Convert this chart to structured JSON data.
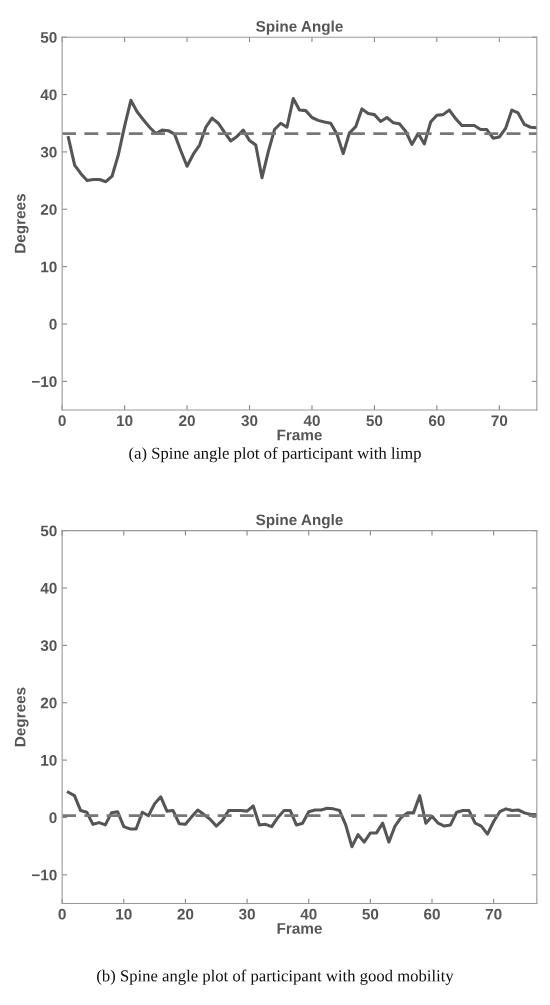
{
  "chart_data": [
    {
      "type": "line",
      "title": "Spine Angle",
      "xlabel": "Frame",
      "ylabel": "Degrees",
      "annotations": [
        "(a) Spine angle plot of participant with limp"
      ],
      "x": [
        1,
        2,
        3,
        4,
        5,
        6,
        7,
        8,
        9,
        10,
        11,
        12,
        13,
        14,
        15,
        16,
        17,
        18,
        19,
        20,
        21,
        22,
        23,
        24,
        25,
        26,
        27,
        28,
        29,
        30,
        31,
        32,
        33,
        34,
        35,
        36,
        37,
        38,
        39,
        40,
        41,
        42,
        43,
        44,
        45,
        46,
        47,
        48,
        49,
        50,
        51,
        52,
        53,
        54,
        55,
        56,
        57,
        58,
        59,
        60,
        61,
        62,
        63,
        64,
        65,
        66,
        67,
        68,
        69,
        70,
        71,
        72,
        73,
        74,
        75,
        76
      ],
      "series": [
        {
          "color": "#555555",
          "values": [
            32.5,
            27.7,
            26.2,
            25,
            25.2,
            25.2,
            24.8,
            25.8,
            29.5,
            34.5,
            39,
            37,
            35.6,
            34.3,
            33.2,
            33.8,
            33.7,
            33.1,
            30.2,
            27.5,
            29.6,
            31.2,
            34.3,
            35.9,
            35,
            33.4,
            31.9,
            32.7,
            33.8,
            32,
            31.2,
            25.5,
            30,
            33.9,
            35,
            34.3,
            39.3,
            37.3,
            37.2,
            36,
            35.5,
            35.2,
            35,
            33.1,
            29.7,
            33.3,
            34.4,
            37.5,
            36.7,
            36.5,
            35.3,
            36,
            35.1,
            34.9,
            33.6,
            31.3,
            33.2,
            31.4,
            35.2,
            36.4,
            36.5,
            37.3,
            35.8,
            34.6,
            34.6,
            34.6,
            33.9,
            33.9,
            32.4,
            32.6,
            34.1,
            37.3,
            36.8,
            34.8,
            34.3,
            34.2
          ]
        }
      ],
      "ref_lines": [
        {
          "axis": "y",
          "value": 33.2,
          "color": "#777777",
          "line_style": "dashed"
        }
      ],
      "xlim": [
        0,
        76
      ],
      "xticks": [
        0,
        10,
        20,
        30,
        40,
        50,
        60,
        70
      ],
      "ylim": [
        -15,
        50
      ],
      "yticks": [
        {
          "value": -10,
          "label": "−10"
        },
        0,
        10,
        20,
        30,
        40,
        50
      ],
      "grid": false,
      "legend": false,
      "line_style": "solid",
      "marker": "none"
    },
    {
      "type": "line",
      "title": "Spine Angle",
      "xlabel": "Frame",
      "ylabel": "Degrees",
      "annotations": [
        "(b) Spine angle plot of participant with good mobility"
      ],
      "x": [
        1,
        2,
        3,
        4,
        5,
        6,
        7,
        8,
        9,
        10,
        11,
        12,
        13,
        14,
        15,
        16,
        17,
        18,
        19,
        20,
        21,
        22,
        23,
        24,
        25,
        26,
        27,
        28,
        29,
        30,
        31,
        32,
        33,
        34,
        35,
        36,
        37,
        38,
        39,
        40,
        41,
        42,
        43,
        44,
        45,
        46,
        47,
        48,
        49,
        50,
        51,
        52,
        53,
        54,
        55,
        56,
        57,
        58,
        59,
        60,
        61,
        62,
        63,
        64,
        65,
        66,
        67,
        68,
        69,
        70,
        71,
        72,
        73,
        74,
        75,
        76,
        77
      ],
      "series": [
        {
          "color": "#555555",
          "values": [
            4.4,
            3.8,
            1.2,
            0.9,
            -1.2,
            -0.9,
            -1.3,
            0.8,
            1,
            -1.6,
            -2,
            -2,
            0.9,
            0.3,
            2.4,
            3.6,
            1.1,
            1.2,
            -1.1,
            -1.2,
            0.1,
            1.3,
            0.5,
            -0.3,
            -1.5,
            -0.5,
            1.2,
            1.2,
            1.2,
            1.1,
            2,
            -1.3,
            -1.2,
            -1.6,
            0,
            1.2,
            1.2,
            -1.3,
            -1,
            1,
            1.3,
            1.3,
            1.6,
            1.5,
            1.2,
            -1.3,
            -5.1,
            -3,
            -4.3,
            -2.7,
            -2.7,
            -1,
            -4.3,
            -1.5,
            0,
            0.8,
            0.8,
            3.8,
            -1,
            0.2,
            -1,
            -1.5,
            -1.3,
            0.9,
            1.2,
            1.2,
            -1,
            -1.5,
            -2.9,
            -0.7,
            1,
            1.5,
            1.2,
            1.3,
            0.8,
            0.5,
            0.5
          ]
        }
      ],
      "ref_lines": [
        {
          "axis": "y",
          "value": 0.3,
          "color": "#777777",
          "line_style": "dashed"
        }
      ],
      "xlim": [
        0,
        77
      ],
      "xticks": [
        0,
        10,
        20,
        30,
        40,
        50,
        60,
        70
      ],
      "ylim": [
        -15,
        50
      ],
      "yticks": [
        {
          "value": -10,
          "label": "−10"
        },
        0,
        10,
        20,
        30,
        40,
        50
      ],
      "grid": false,
      "legend": false,
      "line_style": "solid",
      "marker": "none"
    }
  ]
}
